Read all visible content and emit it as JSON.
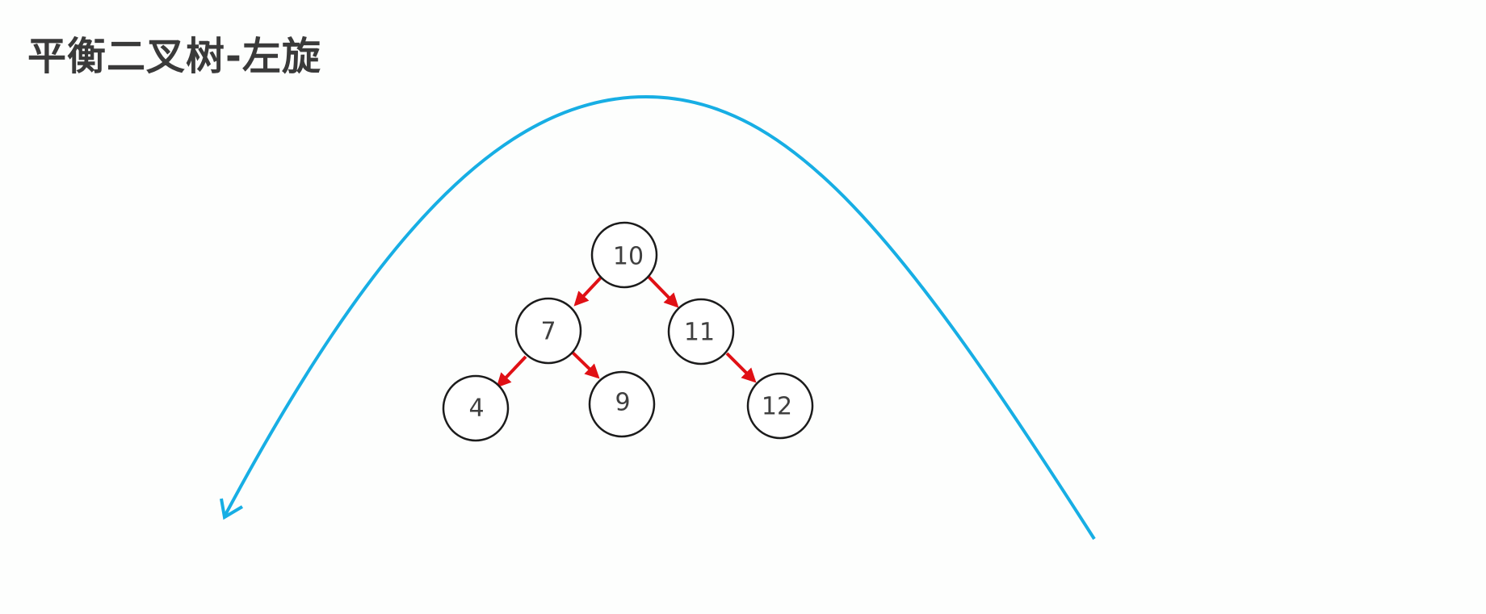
{
  "title": "平衡二叉树-左旋",
  "colors": {
    "background": "#fdfefd",
    "title": "#3a3a3a",
    "edge": "#e01015",
    "rotation_arrow": "#17aee4",
    "node_border": "#1b1b1b"
  },
  "tree": {
    "nodes": [
      {
        "id": "n10",
        "label": "10"
      },
      {
        "id": "n7",
        "label": "7"
      },
      {
        "id": "n11",
        "label": "11"
      },
      {
        "id": "n4",
        "label": "4"
      },
      {
        "id": "n9",
        "label": "9"
      },
      {
        "id": "n12",
        "label": "12"
      }
    ],
    "edges": [
      {
        "from": "10",
        "to": "7"
      },
      {
        "from": "10",
        "to": "11"
      },
      {
        "from": "7",
        "to": "4"
      },
      {
        "from": "7",
        "to": "9"
      },
      {
        "from": "11",
        "to": "12"
      }
    ]
  },
  "rotation_arrow": {
    "direction": "left",
    "icon": "curved-arrow-left-icon"
  }
}
